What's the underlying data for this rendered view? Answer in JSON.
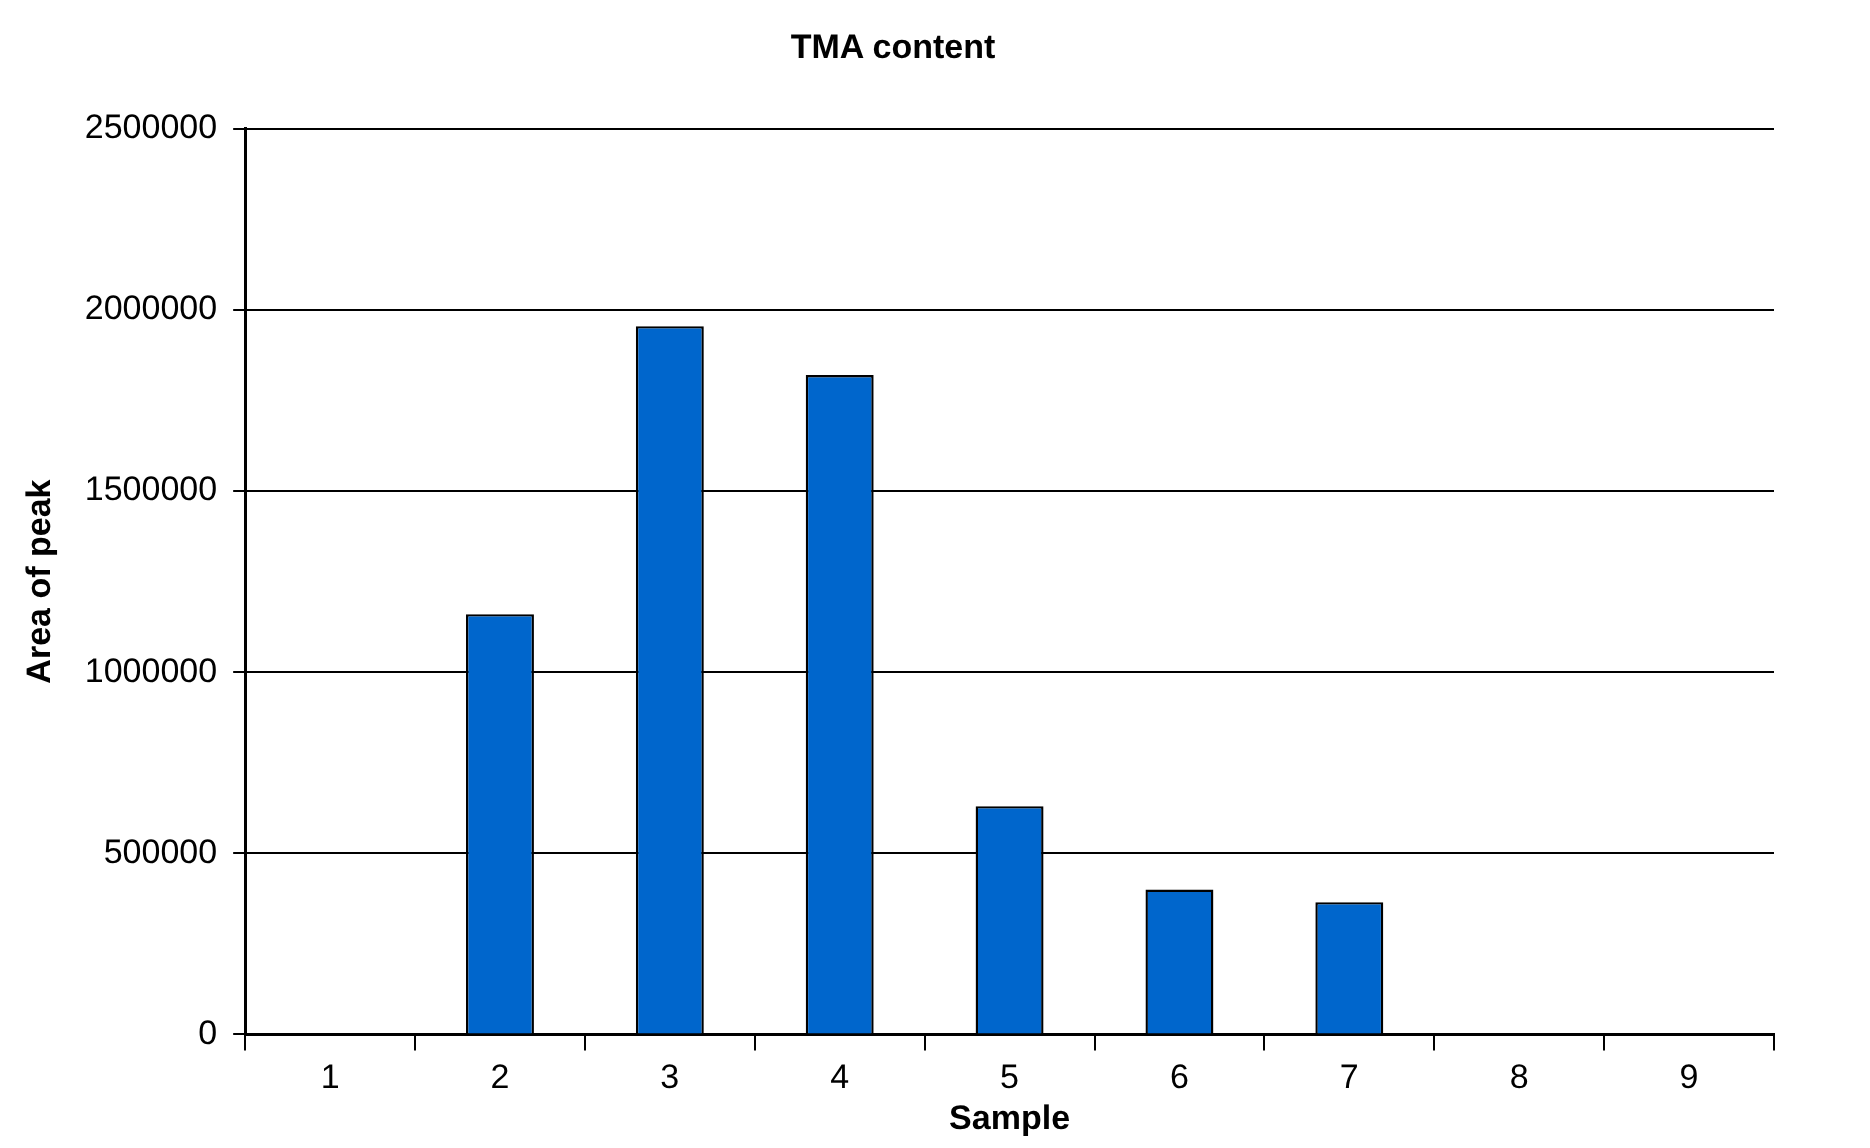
{
  "chart_data": {
    "type": "bar",
    "title": "TMA content",
    "xlabel": "Sample",
    "ylabel": "Area of peak",
    "categories": [
      "1",
      "2",
      "3",
      "4",
      "5",
      "6",
      "7",
      "8",
      "9"
    ],
    "values": [
      0,
      1160000,
      1955000,
      1820000,
      630000,
      400000,
      365000,
      0,
      0
    ],
    "color": "#0066cc",
    "ylim": [
      0,
      2500000
    ],
    "yticks": [
      0,
      500000,
      1000000,
      1500000,
      2000000,
      2500000
    ],
    "grid": "y",
    "legend": false
  }
}
